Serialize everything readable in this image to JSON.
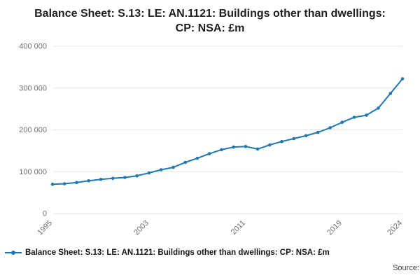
{
  "chart_data": {
    "type": "line",
    "title": "Balance Sheet: S.13: LE: AN.1121: Buildings other than dwellings: CP: NSA: £m",
    "x": [
      1995,
      1996,
      1997,
      1998,
      1999,
      2000,
      2001,
      2002,
      2003,
      2004,
      2005,
      2006,
      2007,
      2008,
      2009,
      2010,
      2011,
      2012,
      2013,
      2014,
      2015,
      2016,
      2017,
      2018,
      2019,
      2020,
      2021,
      2022,
      2023,
      2024
    ],
    "values": [
      69900,
      71200,
      74100,
      78100,
      81500,
      84100,
      86200,
      90100,
      97000,
      104600,
      110300,
      122200,
      132100,
      143000,
      152500,
      158900,
      160100,
      154200,
      164000,
      172000,
      179000,
      186000,
      194000,
      205000,
      218000,
      230000,
      235000,
      252000,
      287000,
      322000
    ],
    "xticks": [
      1995,
      2003,
      2011,
      2019,
      2024
    ],
    "yticks": [
      0,
      100000,
      200000,
      300000,
      400000
    ],
    "ytick_labels": [
      "0",
      "100 000",
      "200 000",
      "300 000",
      "400 000"
    ],
    "ylim": [
      0,
      400000
    ],
    "xlabel": "",
    "ylabel": "",
    "grid": "horizontal-only",
    "legend_position": "bottom-left",
    "legend": [
      "Balance Sheet: S.13: LE: AN.1121: Buildings other than dwellings: CP: NSA: £m"
    ],
    "line_color": "#1f77b4",
    "marker": "circle",
    "source": "Source:"
  }
}
